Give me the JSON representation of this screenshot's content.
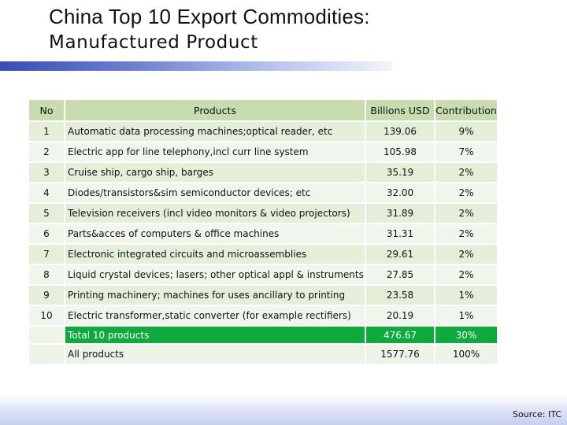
{
  "title": {
    "line1": "China Top 10 Export Commodities:",
    "line2": "Manufactured Product"
  },
  "table": {
    "headers": {
      "no": "No",
      "products": "Products",
      "usd": "Billions USD",
      "contribution": "Contribution"
    },
    "rows": [
      {
        "no": "1",
        "product": "Automatic data processing machines;optical reader, etc",
        "usd": "139.06",
        "pct": "9%"
      },
      {
        "no": "2",
        "product": "Electric app for line telephony,incl curr line system",
        "usd": "105.98",
        "pct": "7%"
      },
      {
        "no": "3",
        "product": "Cruise ship, cargo ship, barges",
        "usd": "35.19",
        "pct": "2%"
      },
      {
        "no": "4",
        "product": "Diodes/transistors&sim semiconductor devices; etc",
        "usd": "32.00",
        "pct": "2%"
      },
      {
        "no": "5",
        "product": "Television receivers (incl video monitors & video projectors)",
        "usd": "31.89",
        "pct": "2%"
      },
      {
        "no": "6",
        "product": "Parts&acces of computers & office machines",
        "usd": "31.31",
        "pct": "2%"
      },
      {
        "no": "7",
        "product": "Electronic integrated circuits and microassemblies",
        "usd": "29.61",
        "pct": "2%"
      },
      {
        "no": "8",
        "product": "Liquid crystal devices; lasers; other optical appl & instruments nes",
        "usd": "27.85",
        "pct": "2%"
      },
      {
        "no": "9",
        "product": "Printing machinery; machines for uses ancillary to printing",
        "usd": "23.58",
        "pct": "1%"
      },
      {
        "no": "10",
        "product": "Electric transformer,static converter (for example rectifiers)",
        "usd": "20.19",
        "pct": "1%"
      }
    ],
    "total": {
      "label": "Total 10 products",
      "usd": "476.67",
      "pct": "30%"
    },
    "all": {
      "label": "All products",
      "usd": "1577.76",
      "pct": "100%"
    }
  },
  "source": "Source: ITC",
  "colors": {
    "header_bg": "#c9dcb0",
    "row_odd_bg": "#e4eed8",
    "row_even_bg": "#f1f6ec",
    "total_bg": "#0eaa3d",
    "accent_bar": "#3a4bb4"
  }
}
